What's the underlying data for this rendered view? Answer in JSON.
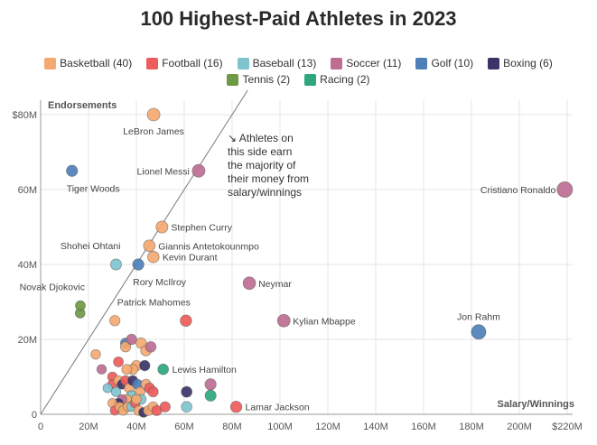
{
  "chart_data": {
    "type": "scatter",
    "title": "100 Highest-Paid Athletes in 2023",
    "xlabel": "Salary/Winnings",
    "ylabel": "Endorsements",
    "xlim": [
      0,
      220
    ],
    "ylim": [
      0,
      80
    ],
    "x_ticks": [
      "0",
      "20M",
      "40M",
      "60M",
      "80M",
      "100M",
      "120M",
      "140M",
      "160M",
      "180M",
      "200M",
      "$220M"
    ],
    "y_ticks": [
      "0",
      "20M",
      "40M",
      "60M",
      "$80M"
    ],
    "note": [
      "↘ Athletes on",
      "this side earn",
      "the majority of",
      "their money from",
      "salary/winnings"
    ],
    "sports": [
      {
        "key": "basketball",
        "label": "Basketball (40)",
        "color": "#f4a971"
      },
      {
        "key": "football",
        "label": "Football (16)",
        "color": "#ee5c5c"
      },
      {
        "key": "baseball",
        "label": "Baseball (13)",
        "color": "#7ec4cf"
      },
      {
        "key": "soccer",
        "label": "Soccer (11)",
        "color": "#bd6e92"
      },
      {
        "key": "golf",
        "label": "Golf (10)",
        "color": "#4e7fb8"
      },
      {
        "key": "boxing",
        "label": "Boxing (6)",
        "color": "#3a3468"
      },
      {
        "key": "tennis",
        "label": "Tennis (2)",
        "color": "#6e9a45"
      },
      {
        "key": "racing",
        "label": "Racing (2)",
        "color": "#2ea77e"
      }
    ],
    "points": [
      {
        "name": "LeBron James",
        "sport": "basketball",
        "x": 47.2,
        "y": 80,
        "label_pos": "below"
      },
      {
        "name": "Lionel Messi",
        "sport": "soccer",
        "x": 66,
        "y": 65,
        "label_pos": "left"
      },
      {
        "name": "Cristiano Ronaldo",
        "sport": "soccer",
        "x": 219,
        "y": 60,
        "label_pos": "left"
      },
      {
        "name": "Tiger Woods",
        "sport": "golf",
        "x": 13.1,
        "y": 65,
        "label_pos": "below-right"
      },
      {
        "name": "Stephen Curry",
        "sport": "basketball",
        "x": 50.7,
        "y": 50,
        "label_pos": "right"
      },
      {
        "name": "Giannis Antetokounmpo",
        "sport": "basketball",
        "x": 45.4,
        "y": 45,
        "label_pos": "right"
      },
      {
        "name": "Kevin Durant",
        "sport": "basketball",
        "x": 47.1,
        "y": 42,
        "label_pos": "right"
      },
      {
        "name": "Shohei Ohtani",
        "sport": "baseball",
        "x": 31.5,
        "y": 40,
        "label_pos": "above-left"
      },
      {
        "name": "Rory McIlroy",
        "sport": "golf",
        "x": 40.8,
        "y": 40,
        "label_pos": "below-right"
      },
      {
        "name": "Neymar",
        "sport": "soccer",
        "x": 87.2,
        "y": 35,
        "label_pos": "right"
      },
      {
        "name": "Novak Djokovic",
        "sport": "tennis",
        "x": 16.6,
        "y": 29,
        "label_pos": "above-left"
      },
      {
        "name": "Patrick Mahomes",
        "sport": "football",
        "x": 60.7,
        "y": 25,
        "label_pos": "above-left"
      },
      {
        "name": "Kylian Mbappe",
        "sport": "soccer",
        "x": 101.6,
        "y": 25,
        "label_pos": "right"
      },
      {
        "name": "Jon Rahm",
        "sport": "golf",
        "x": 183,
        "y": 22,
        "label_pos": "above"
      },
      {
        "name": "Lewis Hamilton",
        "sport": "racing",
        "x": 51.2,
        "y": 12,
        "label_pos": "right"
      },
      {
        "name": "Lamar Jackson",
        "sport": "football",
        "x": 81.7,
        "y": 2,
        "label_pos": "right"
      },
      {
        "name": "",
        "sport": "tennis",
        "x": 16.5,
        "y": 27
      },
      {
        "name": "",
        "sport": "basketball",
        "x": 31,
        "y": 25
      },
      {
        "name": "",
        "sport": "basketball",
        "x": 23,
        "y": 16
      },
      {
        "name": "",
        "sport": "soccer",
        "x": 25.5,
        "y": 12
      },
      {
        "name": "",
        "sport": "golf",
        "x": 35.5,
        "y": 19
      },
      {
        "name": "",
        "sport": "basketball",
        "x": 35.5,
        "y": 18
      },
      {
        "name": "",
        "sport": "soccer",
        "x": 38,
        "y": 20
      },
      {
        "name": "",
        "sport": "basketball",
        "x": 42,
        "y": 19
      },
      {
        "name": "",
        "sport": "basketball",
        "x": 44,
        "y": 17
      },
      {
        "name": "",
        "sport": "soccer",
        "x": 46,
        "y": 18
      },
      {
        "name": "",
        "sport": "basketball",
        "x": 40,
        "y": 13
      },
      {
        "name": "",
        "sport": "boxing",
        "x": 43.5,
        "y": 13
      },
      {
        "name": "",
        "sport": "basketball",
        "x": 38.5,
        "y": 12
      },
      {
        "name": "",
        "sport": "basketball",
        "x": 36,
        "y": 12
      },
      {
        "name": "",
        "sport": "football",
        "x": 32.5,
        "y": 14
      },
      {
        "name": "",
        "sport": "football",
        "x": 30,
        "y": 10
      },
      {
        "name": "",
        "sport": "football",
        "x": 30,
        "y": 8
      },
      {
        "name": "",
        "sport": "basketball",
        "x": 32.5,
        "y": 9
      },
      {
        "name": "",
        "sport": "boxing",
        "x": 34,
        "y": 8
      },
      {
        "name": "",
        "sport": "baseball",
        "x": 28,
        "y": 7
      },
      {
        "name": "",
        "sport": "baseball",
        "x": 31.5,
        "y": 6
      },
      {
        "name": "",
        "sport": "football",
        "x": 35.5,
        "y": 9
      },
      {
        "name": "",
        "sport": "basketball",
        "x": 37,
        "y": 7
      },
      {
        "name": "",
        "sport": "boxing",
        "x": 38.5,
        "y": 9
      },
      {
        "name": "",
        "sport": "golf",
        "x": 40.5,
        "y": 8
      },
      {
        "name": "",
        "sport": "basketball",
        "x": 41.5,
        "y": 6
      },
      {
        "name": "",
        "sport": "basketball",
        "x": 44,
        "y": 8
      },
      {
        "name": "",
        "sport": "football",
        "x": 45.5,
        "y": 7
      },
      {
        "name": "",
        "sport": "football",
        "x": 47,
        "y": 6
      },
      {
        "name": "",
        "sport": "baseball",
        "x": 38,
        "y": 5
      },
      {
        "name": "",
        "sport": "basketball",
        "x": 36,
        "y": 4
      },
      {
        "name": "",
        "sport": "soccer",
        "x": 34,
        "y": 4
      },
      {
        "name": "",
        "sport": "boxing",
        "x": 32.5,
        "y": 3
      },
      {
        "name": "",
        "sport": "basketball",
        "x": 30,
        "y": 3
      },
      {
        "name": "",
        "sport": "football",
        "x": 31,
        "y": 1
      },
      {
        "name": "",
        "sport": "basketball",
        "x": 33,
        "y": 2
      },
      {
        "name": "",
        "sport": "basketball",
        "x": 34.5,
        "y": 1
      },
      {
        "name": "",
        "sport": "basketball",
        "x": 36.5,
        "y": 2
      },
      {
        "name": "",
        "sport": "baseball",
        "x": 38,
        "y": 2
      },
      {
        "name": "",
        "sport": "football",
        "x": 39.5,
        "y": 3
      },
      {
        "name": "",
        "sport": "basketball",
        "x": 41,
        "y": 1
      },
      {
        "name": "",
        "sport": "boxing",
        "x": 43,
        "y": 0.5
      },
      {
        "name": "",
        "sport": "basketball",
        "x": 45,
        "y": 1
      },
      {
        "name": "",
        "sport": "basketball",
        "x": 47,
        "y": 2
      },
      {
        "name": "",
        "sport": "football",
        "x": 48.5,
        "y": 1
      },
      {
        "name": "",
        "sport": "football",
        "x": 52,
        "y": 2
      },
      {
        "name": "",
        "sport": "baseball",
        "x": 42,
        "y": 4
      },
      {
        "name": "",
        "sport": "basketball",
        "x": 40,
        "y": 4
      },
      {
        "name": "",
        "sport": "boxing",
        "x": 61,
        "y": 6
      },
      {
        "name": "",
        "sport": "soccer",
        "x": 71,
        "y": 8
      },
      {
        "name": "",
        "sport": "racing",
        "x": 71,
        "y": 5
      },
      {
        "name": "",
        "sport": "baseball",
        "x": 61,
        "y": 2
      }
    ]
  }
}
